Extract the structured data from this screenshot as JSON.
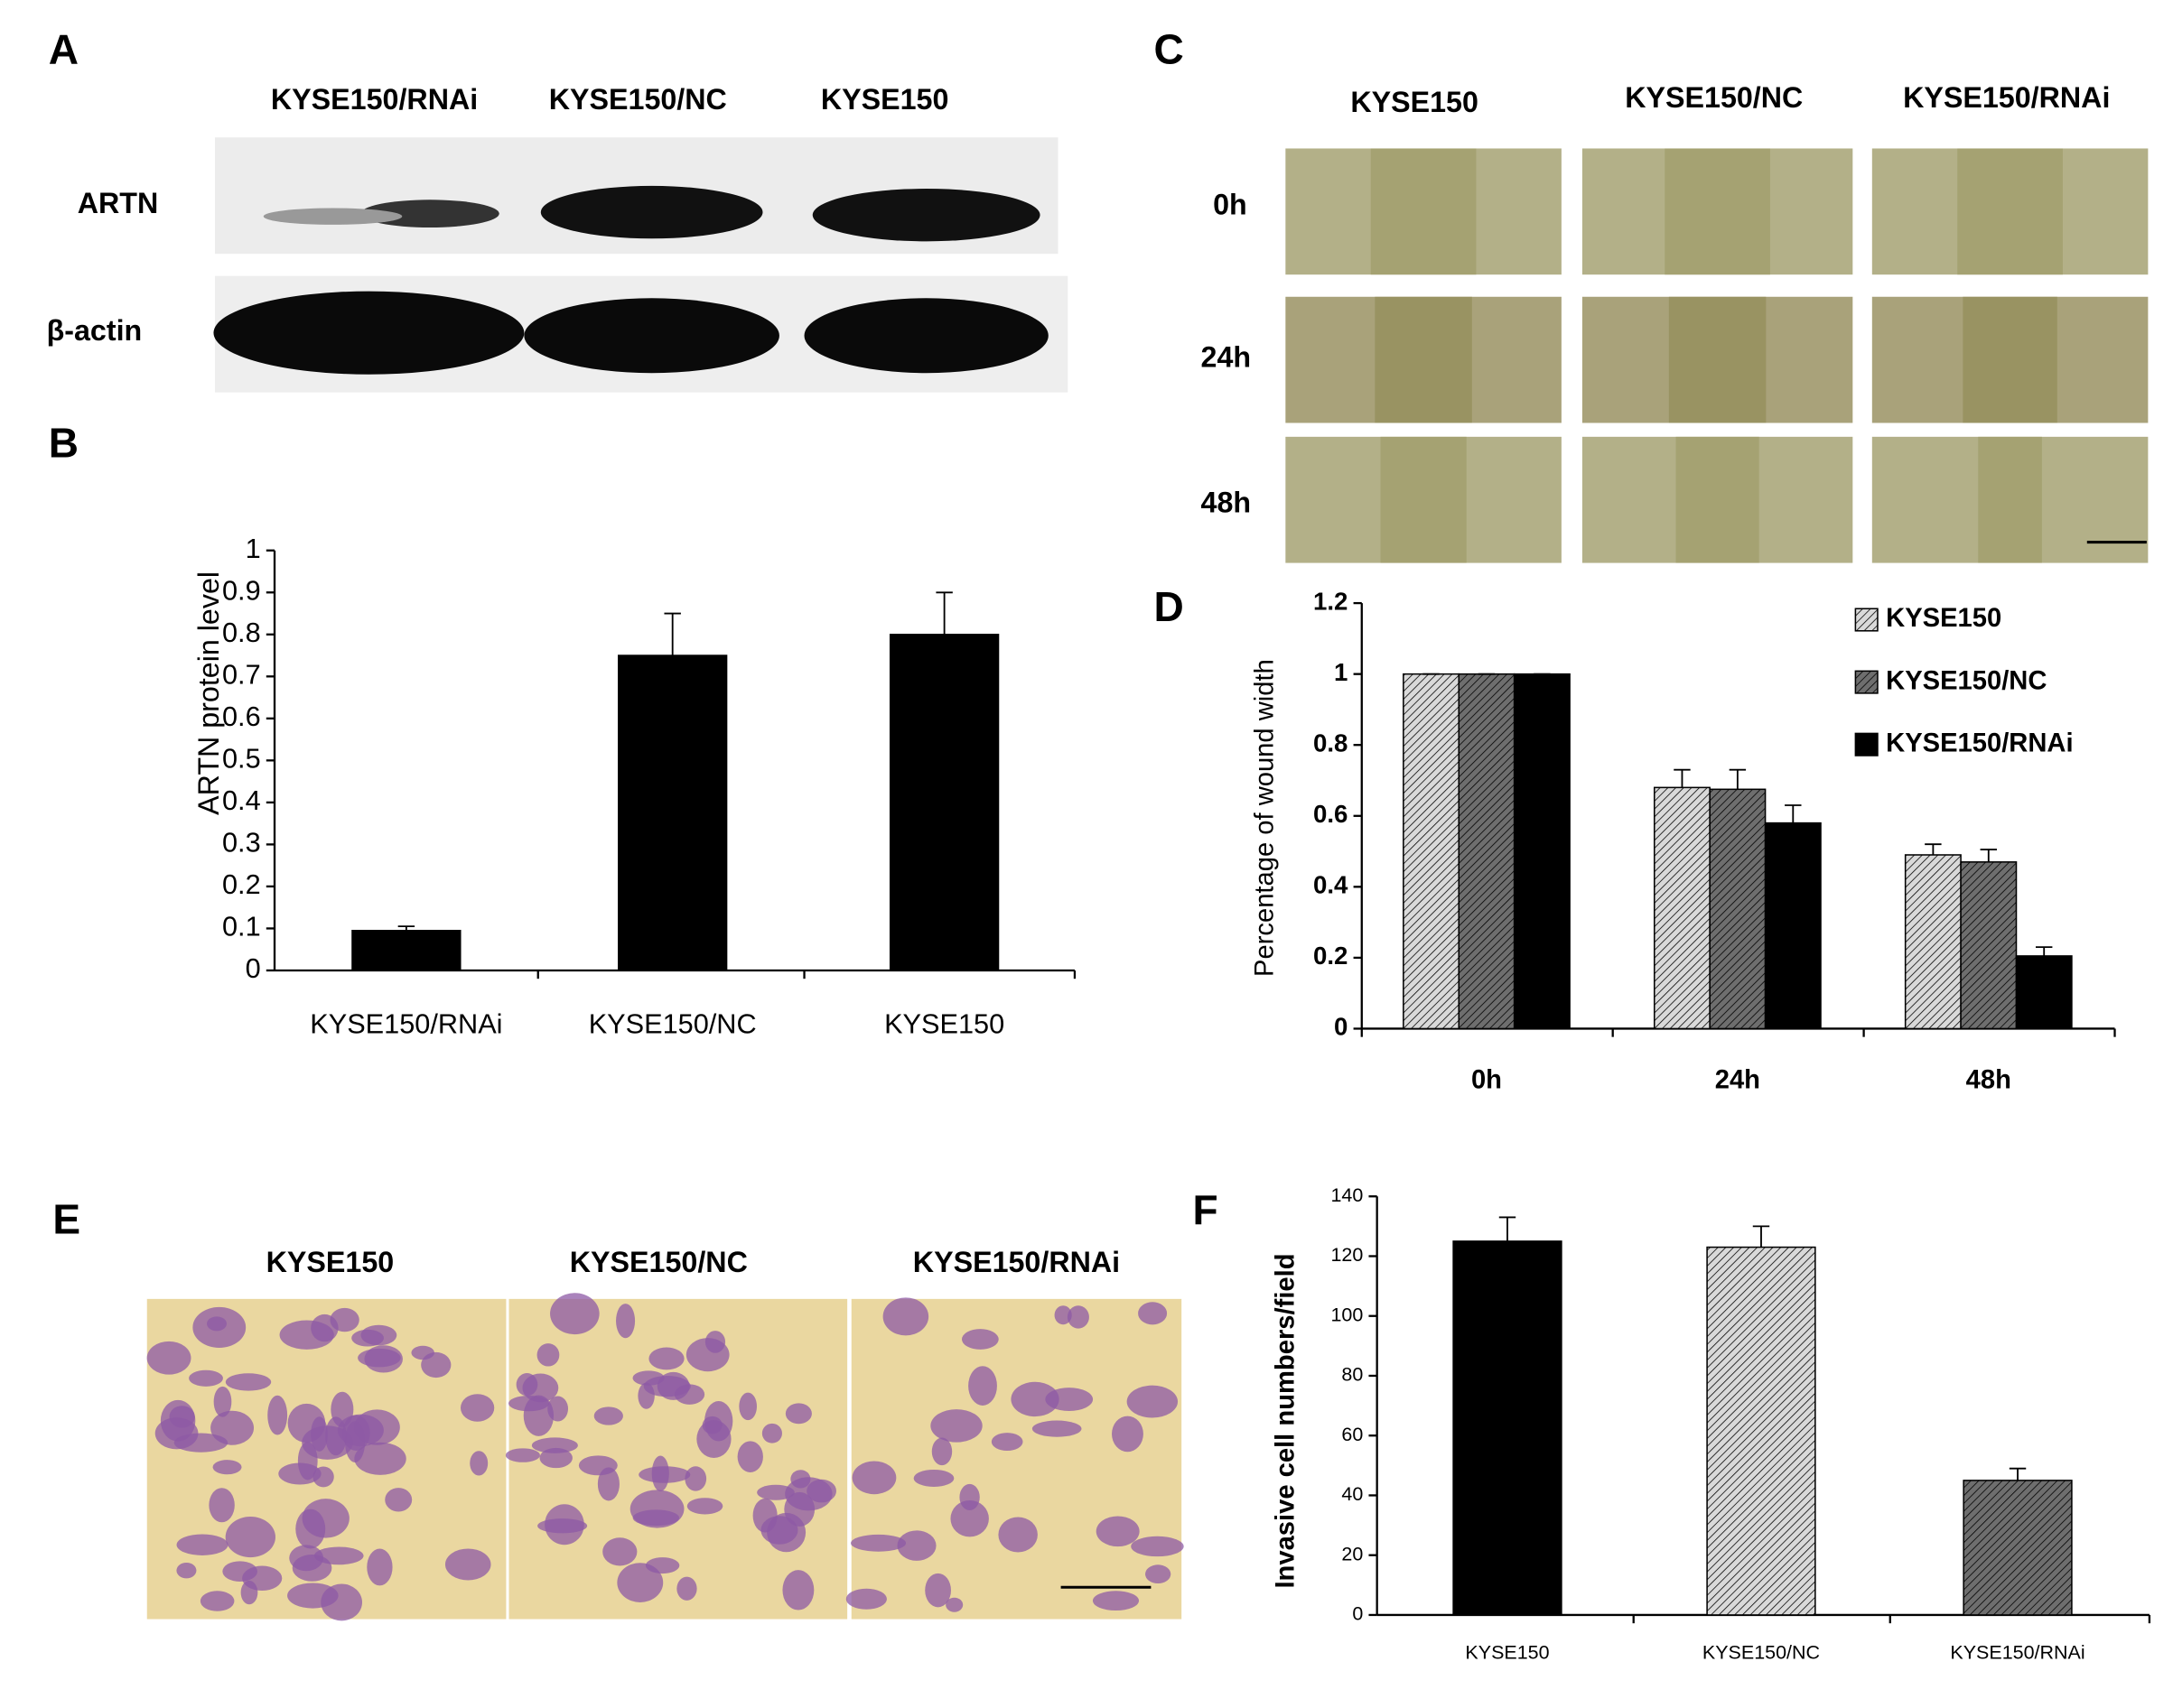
{
  "panel_labels": [
    "A",
    "B",
    "C",
    "D",
    "E",
    "F"
  ],
  "blot": {
    "lanes": [
      "KYSE150/RNAi",
      "KYSE150/NC",
      "KYSE150"
    ],
    "rows": [
      "ARTN",
      "β-actin"
    ]
  },
  "wound": {
    "columns": [
      "KYSE150",
      "KYSE150/NC",
      "KYSE150/RNAi"
    ],
    "rows": [
      "0h",
      "24h",
      "48h"
    ]
  },
  "invasion": {
    "columns": [
      "KYSE150",
      "KYSE150/NC",
      "KYSE150/RNAi"
    ]
  },
  "chart_data": [
    {
      "type": "bar",
      "y_label": "ARTN protein level",
      "categories": [
        "KYSE150/RNAi",
        "KYSE150/NC",
        "KYSE150"
      ],
      "values": [
        0.095,
        0.75,
        0.8
      ],
      "errors": [
        0.01,
        0.1,
        0.1
      ],
      "colors": [
        "#000000",
        "#000000",
        "#000000"
      ],
      "hatched": [
        false,
        false,
        false
      ],
      "ylim": [
        0,
        1
      ],
      "yticks": [
        0,
        0.1,
        0.2,
        0.3,
        0.4,
        0.5,
        0.6,
        0.7,
        0.8,
        0.9,
        1
      ]
    },
    {
      "type": "bar",
      "y_label": "Percentage of wound width",
      "categories": [
        "0h",
        "24h",
        "48h"
      ],
      "series": [
        {
          "name": "KYSE150",
          "color": "#d9d9d9",
          "hatched": true,
          "values": [
            1,
            0.68,
            0.49
          ],
          "errors": [
            0,
            0.05,
            0.03
          ]
        },
        {
          "name": "KYSE150/NC",
          "color": "#6e6e6e",
          "hatched": true,
          "values": [
            1,
            0.675,
            0.47
          ],
          "errors": [
            0,
            0.055,
            0.035
          ]
        },
        {
          "name": "KYSE150/RNAi",
          "color": "#000000",
          "hatched": false,
          "values": [
            1,
            0.58,
            0.205
          ],
          "errors": [
            0,
            0.05,
            0.025
          ]
        }
      ],
      "ylim": [
        0,
        1.2
      ],
      "yticks": [
        0,
        0.2,
        0.4,
        0.6,
        0.8,
        1,
        1.2
      ]
    },
    {
      "type": "bar",
      "y_label": "Invasive cell numbers/field",
      "categories": [
        "KYSE150",
        "KYSE150/NC",
        "KYSE150/RNAi"
      ],
      "values": [
        125,
        123,
        45
      ],
      "errors": [
        8,
        7,
        4
      ],
      "colors": [
        "#000000",
        "#d9d9d9",
        "#6e6e6e"
      ],
      "hatched": [
        false,
        true,
        true
      ],
      "ylim": [
        0,
        140
      ],
      "yticks": [
        0,
        20,
        40,
        60,
        80,
        100,
        120,
        140
      ]
    }
  ]
}
